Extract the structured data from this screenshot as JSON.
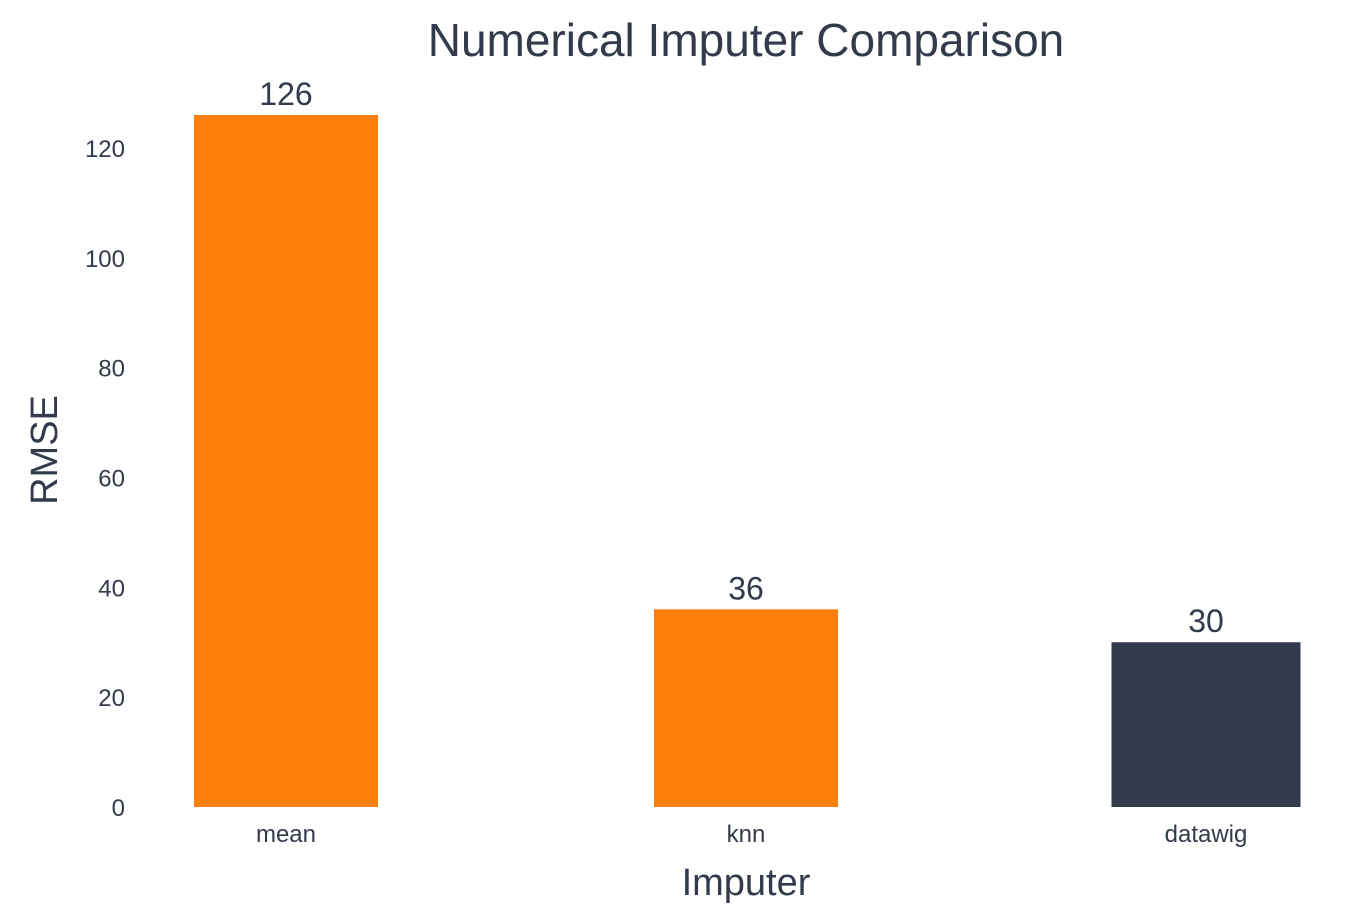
{
  "chart_data": {
    "type": "bar",
    "title": "Numerical Imputer Comparison",
    "xlabel": "Imputer",
    "ylabel": "RMSE",
    "categories": [
      "mean",
      "knn",
      "datawig"
    ],
    "values": [
      126,
      36,
      30
    ],
    "data_labels": [
      "126",
      "36",
      "30"
    ],
    "bar_colors": [
      "#ff7f0e",
      "#ff7f0e",
      "#333a4b"
    ],
    "ylim": [
      0,
      126
    ],
    "yticks": [
      0,
      20,
      40,
      60,
      80,
      100,
      120
    ],
    "grid": false,
    "legend": "none"
  },
  "colors": {
    "text": "#333a4b",
    "background": "#ffffff"
  }
}
